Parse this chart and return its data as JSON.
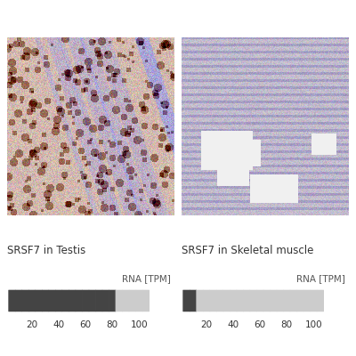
{
  "title_left": "SRSF7 in Testis",
  "title_right": "SRSF7 in Skeletal muscle",
  "rna_label": "RNA [TPM]",
  "tick_labels": [
    20,
    40,
    60,
    80,
    100
  ],
  "n_bars": 21,
  "testis_filled": 16,
  "muscle_filled": 2,
  "bar_dark": "#444444",
  "bar_light": "#cccccc",
  "background_color": "#ffffff",
  "text_color": "#333333",
  "title_fontsize": 8.5,
  "tick_fontsize": 7.5,
  "rna_label_fontsize": 7.5,
  "fig_width": 4.0,
  "fig_height": 4.0
}
